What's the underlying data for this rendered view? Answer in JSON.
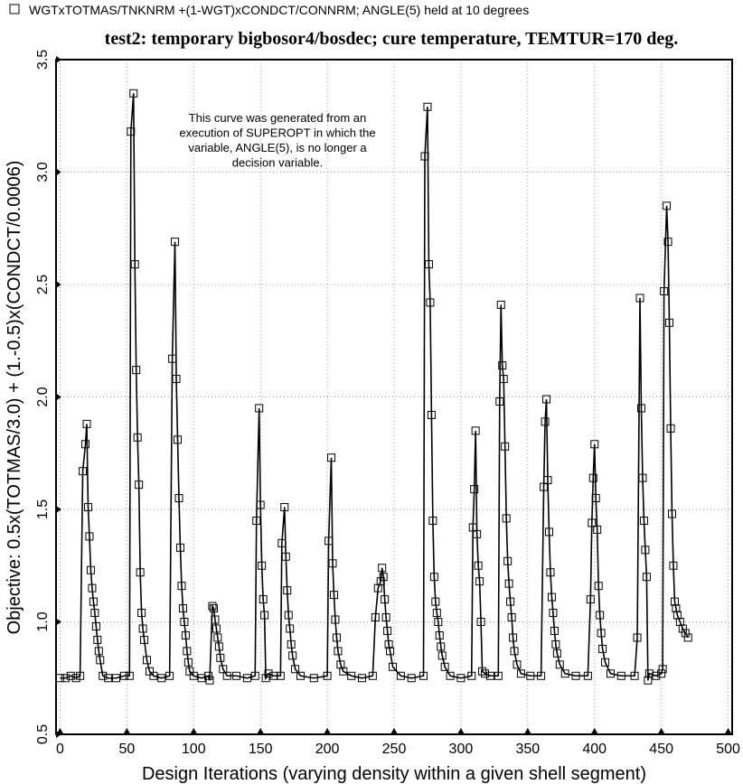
{
  "chart_data": {
    "type": "line",
    "title": "test2: temporary bigbosor4/bosdec; cure temperature, TEMTUR=170 deg.",
    "xlabel": "Design Iterations (varying density within a given shell segment)",
    "ylabel": "Objective: 0.5x(TOTMAS/3.0) + (1.-0.5)x(CONDCT/0.0006)",
    "annotation_lines": [
      "This curve was generated from an",
      "execution of SUPEROPT in which the",
      "variable, ANGLE(5), is no longer a",
      "decision variable."
    ],
    "xlim": [
      -3,
      503
    ],
    "ylim": [
      0.5,
      3.5
    ],
    "xticks": [
      0,
      50,
      100,
      150,
      200,
      250,
      300,
      350,
      400,
      450,
      500
    ],
    "yticks": [
      0.5,
      {
        "value": 1,
        "label": "1.0"
      },
      1.5,
      {
        "value": 2,
        "label": "2.0"
      },
      2.5,
      {
        "value": 3,
        "label": "3.0"
      },
      3.5
    ],
    "grid": true,
    "x": [
      0,
      4,
      8,
      12,
      15,
      17,
      19,
      20,
      21,
      22,
      23,
      24,
      25,
      26,
      27,
      28,
      29,
      30,
      32,
      36,
      42,
      48,
      52,
      53,
      55,
      56,
      57,
      58,
      59,
      60,
      61,
      62,
      63,
      65,
      67,
      70,
      76,
      82,
      84,
      86,
      87,
      88,
      89,
      90,
      91,
      92,
      93,
      94,
      95,
      96,
      97,
      100,
      106,
      111,
      112,
      114,
      115,
      116,
      117,
      118,
      119,
      120,
      122,
      125,
      132,
      140,
      146,
      147,
      149,
      150,
      151,
      152,
      153,
      154,
      156,
      160,
      165,
      166,
      168,
      169,
      170,
      171,
      172,
      173,
      174,
      176,
      180,
      190,
      200,
      201,
      203,
      204,
      205,
      206,
      207,
      208,
      210,
      212,
      218,
      226,
      234,
      236,
      238,
      240,
      241,
      242,
      243,
      244,
      245,
      246,
      247,
      249,
      255,
      263,
      272,
      273,
      275,
      276,
      277,
      278,
      279,
      280,
      281,
      282,
      283,
      284,
      285,
      286,
      288,
      292,
      300,
      308,
      309,
      310,
      311,
      312,
      313,
      314,
      315,
      316,
      318,
      322,
      328,
      329,
      330,
      331,
      332,
      333,
      334,
      335,
      336,
      337,
      338,
      339,
      340,
      342,
      345,
      352,
      360,
      362,
      363,
      364,
      365,
      366,
      367,
      368,
      369,
      370,
      371,
      372,
      374,
      378,
      386,
      395,
      397,
      398,
      399,
      400,
      401,
      402,
      403,
      404,
      405,
      406,
      408,
      412,
      420,
      430,
      432,
      434,
      435,
      436,
      437,
      438,
      439,
      440,
      441,
      446,
      450,
      451,
      452,
      454,
      455,
      456,
      457,
      458,
      459,
      460,
      461,
      462,
      464,
      466,
      468,
      470
    ],
    "series": [
      {
        "name": "WGTxTOTMAS/TNKNRM +(1-WGT)xCONDCT/CONNRM; ANGLE(5) held at 10 degrees",
        "color": "#000000",
        "values": [
          0.75,
          0.75,
          0.76,
          0.75,
          0.76,
          1.67,
          1.79,
          1.88,
          1.51,
          1.38,
          1.23,
          1.15,
          1.09,
          1.04,
          0.98,
          0.92,
          0.87,
          0.83,
          0.76,
          0.75,
          0.75,
          0.76,
          0.76,
          3.18,
          3.35,
          2.59,
          2.12,
          1.82,
          1.61,
          1.22,
          1.04,
          0.97,
          0.92,
          0.83,
          0.78,
          0.76,
          0.75,
          0.76,
          2.17,
          2.69,
          2.08,
          1.81,
          1.55,
          1.33,
          1.16,
          1.06,
          1.0,
          0.94,
          0.87,
          0.82,
          0.78,
          0.76,
          0.75,
          0.76,
          0.74,
          1.07,
          1.06,
          1.01,
          0.97,
          0.93,
          0.89,
          0.84,
          0.79,
          0.76,
          0.76,
          0.75,
          0.76,
          1.45,
          1.95,
          1.52,
          1.25,
          1.1,
          1.03,
          0.75,
          0.77,
          0.76,
          0.76,
          1.35,
          1.51,
          1.29,
          1.14,
          1.03,
          0.97,
          0.9,
          0.85,
          0.79,
          0.76,
          0.75,
          0.76,
          1.36,
          1.73,
          1.26,
          1.12,
          1.01,
          0.93,
          0.87,
          0.81,
          0.78,
          0.76,
          0.75,
          0.76,
          1.02,
          1.15,
          1.18,
          1.24,
          1.2,
          1.1,
          1.02,
          0.96,
          0.9,
          0.87,
          0.8,
          0.76,
          0.75,
          0.76,
          3.07,
          3.29,
          2.59,
          2.42,
          1.92,
          1.45,
          1.2,
          1.09,
          1.04,
          1.0,
          0.94,
          0.89,
          0.85,
          0.8,
          0.76,
          0.75,
          0.76,
          1.42,
          1.59,
          1.85,
          1.39,
          1.25,
          1.18,
          1.0,
          0.78,
          0.77,
          0.76,
          0.76,
          1.98,
          2.41,
          2.14,
          2.08,
          1.78,
          1.46,
          1.27,
          1.17,
          1.09,
          1.02,
          0.93,
          0.87,
          0.81,
          0.77,
          0.76,
          0.76,
          1.6,
          1.89,
          1.99,
          1.63,
          1.4,
          1.22,
          1.11,
          1.04,
          0.96,
          0.9,
          0.86,
          0.81,
          0.77,
          0.76,
          0.76,
          1.1,
          1.44,
          1.64,
          1.79,
          1.55,
          1.41,
          1.16,
          1.03,
          0.95,
          0.88,
          0.82,
          0.77,
          0.76,
          0.76,
          0.93,
          2.44,
          1.95,
          1.64,
          1.45,
          1.32,
          1.2,
          0.74,
          0.77,
          0.76,
          0.77,
          0.79,
          2.47,
          2.85,
          2.69,
          2.33,
          1.86,
          1.48,
          1.25,
          1.09,
          1.06,
          1.03,
          1.0,
          0.97,
          0.95,
          0.93
        ]
      }
    ]
  }
}
